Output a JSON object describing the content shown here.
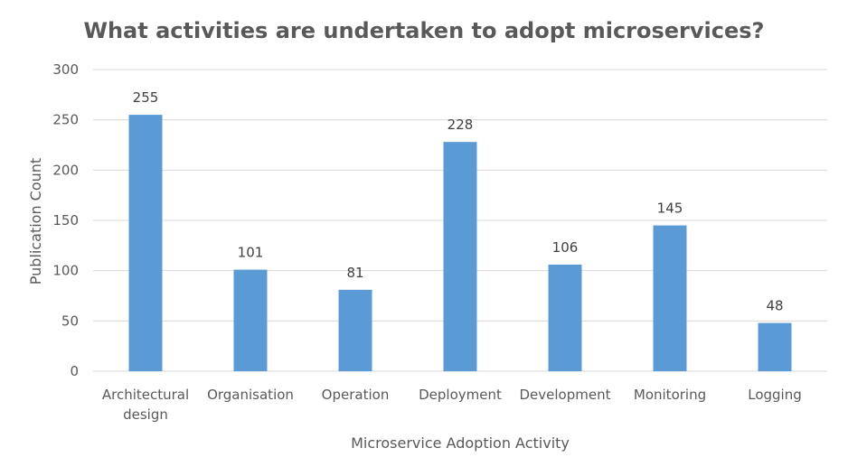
{
  "chart_data": {
    "type": "bar",
    "title": "What activities are undertaken to adopt microservices?",
    "xlabel": "Microservice Adoption Activity",
    "ylabel": "Publication Count",
    "categories": [
      [
        "Architectural",
        "design"
      ],
      [
        "Organisation"
      ],
      [
        "Operation"
      ],
      [
        "Deployment"
      ],
      [
        "Development"
      ],
      [
        "Monitoring"
      ],
      [
        "Logging"
      ]
    ],
    "values": [
      255,
      101,
      81,
      228,
      106,
      145,
      48
    ],
    "ylim": [
      0,
      300
    ],
    "yticks": [
      0,
      50,
      100,
      150,
      200,
      250,
      300
    ],
    "grid": true,
    "legend": "none",
    "colors": {
      "bar": "#5b9bd5",
      "grid": "#d9d9d9",
      "text": "#595959"
    }
  }
}
